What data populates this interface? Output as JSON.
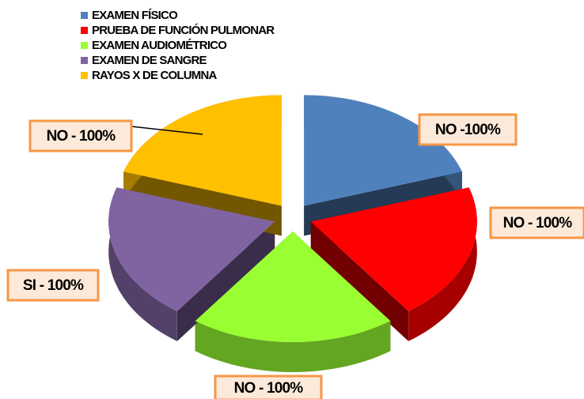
{
  "chart_data": {
    "type": "pie",
    "categories": [
      "EXAMEN FÍSICO",
      "PRUEBA DE FUNCIÓN PULMONAR",
      "EXAMEN AUDIOMÉTRICO",
      "EXAMEN DE SANGRE",
      "RAYOS X DE COLUMNA"
    ],
    "values": [
      100,
      100,
      100,
      100,
      100
    ],
    "value_labels": [
      "NO -100%",
      "NO - 100%",
      "NO - 100%",
      "SI - 100%",
      "NO - 100%"
    ],
    "colors": [
      "#4f81bd",
      "#ff0000",
      "#99ff33",
      "#8064a2",
      "#ffc000"
    ],
    "legend": "top"
  }
}
